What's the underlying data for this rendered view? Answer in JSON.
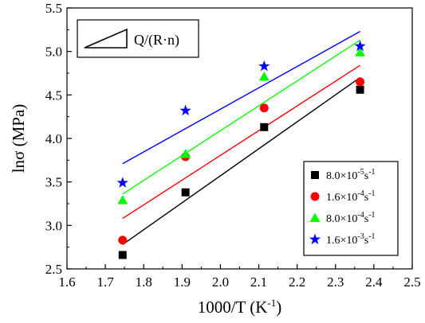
{
  "chart_data": {
    "type": "scatter",
    "xlabel": "1000/T (K",
    "xlabel_sup": "-1",
    "xlabel_end": ")",
    "ylabel": "lnσ (MPa)",
    "xlim": [
      1.6,
      2.5
    ],
    "ylim": [
      2.5,
      5.5
    ],
    "x_ticks": [
      "1.6",
      "1.7",
      "1.8",
      "1.9",
      "2.0",
      "2.1",
      "2.2",
      "2.3",
      "2.4",
      "2.5"
    ],
    "y_ticks": [
      "2.5",
      "3.0",
      "3.5",
      "4.0",
      "4.5",
      "5.0",
      "5.5"
    ],
    "annotation": "Q/(R·n)",
    "legend_position": "bottom-right",
    "series": [
      {
        "name": "8.0×10⁻⁵s⁻¹",
        "legend_parts": [
          "8.0×10",
          "-5",
          "s",
          "-1"
        ],
        "marker": "square",
        "color": "#000000",
        "x": [
          1.745,
          1.909,
          2.114,
          2.364
        ],
        "y": [
          2.66,
          3.38,
          4.13,
          4.56
        ],
        "fit": {
          "x": [
            1.745,
            2.364
          ],
          "y": [
            2.78,
            4.7
          ]
        }
      },
      {
        "name": "1.6×10⁻⁴s⁻¹",
        "legend_parts": [
          "1.6×10",
          "-4",
          "s",
          "-1"
        ],
        "marker": "circle",
        "color": "#ff0000",
        "x": [
          1.745,
          1.909,
          2.114,
          2.364
        ],
        "y": [
          2.83,
          3.79,
          4.35,
          4.65
        ],
        "fit": {
          "x": [
            1.745,
            2.364
          ],
          "y": [
            3.08,
            4.84
          ]
        }
      },
      {
        "name": "8.0×10⁻⁴s⁻¹",
        "legend_parts": [
          "8.0×10",
          "-4",
          "s",
          "-1"
        ],
        "marker": "triangle",
        "color": "#00ff00",
        "x": [
          1.745,
          1.909,
          2.114,
          2.364
        ],
        "y": [
          3.29,
          3.82,
          4.71,
          4.99
        ],
        "fit": {
          "x": [
            1.745,
            2.364
          ],
          "y": [
            3.36,
            5.13
          ]
        }
      },
      {
        "name": "1.6×10⁻³s⁻¹",
        "legend_parts": [
          "1.6×10",
          "-3",
          "s",
          "-1"
        ],
        "marker": "star",
        "color": "#0000ff",
        "x": [
          1.745,
          1.909,
          2.114,
          2.364
        ],
        "y": [
          3.49,
          4.32,
          4.83,
          5.06
        ],
        "fit": {
          "x": [
            1.745,
            2.364
          ],
          "y": [
            3.71,
            5.23
          ]
        }
      }
    ]
  }
}
